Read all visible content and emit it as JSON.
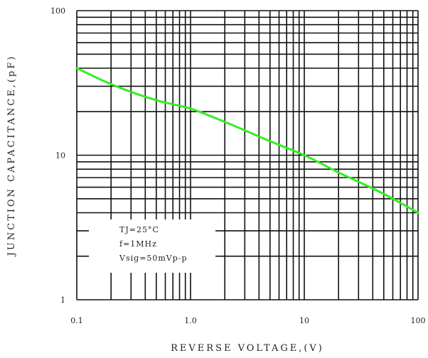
{
  "chart_data": {
    "type": "line",
    "title": "",
    "xlabel": "REVERSE VOLTAGE,(V)",
    "ylabel": "JUNCTION CAPACITANCE,(pF)",
    "xscale": "log",
    "yscale": "log",
    "xlim": [
      0.1,
      100
    ],
    "ylim": [
      1,
      100
    ],
    "grid": true,
    "x_ticks": [
      0.1,
      1,
      10,
      100
    ],
    "x_tick_labels": [
      "0.1",
      "1.0",
      "10",
      "100"
    ],
    "y_ticks": [
      1,
      10,
      100
    ],
    "y_tick_labels": [
      "1",
      "10",
      "100"
    ],
    "series": [
      {
        "color": "#33ee22",
        "x": [
          0.1,
          0.2,
          0.5,
          1,
          2,
          5,
          10,
          20,
          50,
          100
        ],
        "y": [
          40,
          31,
          24,
          21,
          17,
          12.5,
          10,
          7.6,
          5.4,
          4
        ]
      }
    ],
    "annotations": [
      "TJ=25°C",
      "f=1MHz",
      "Vsig=50mVp-p"
    ]
  }
}
